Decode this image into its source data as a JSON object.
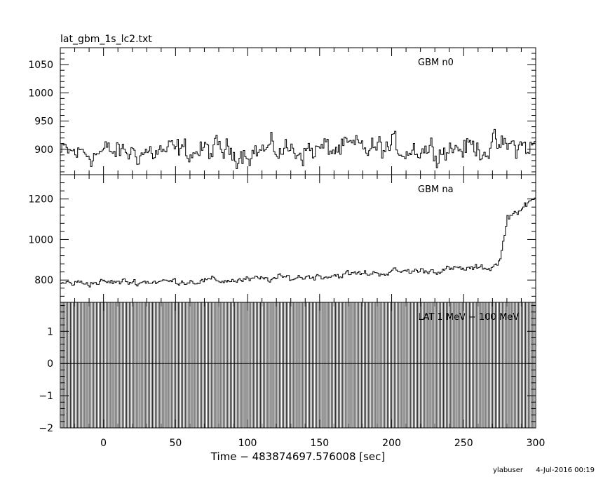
{
  "page": {
    "title": "lat_gbm_1s_lc2.txt",
    "footer_user": "ylabuser",
    "footer_date": "4-Jul-2016 00:19"
  },
  "chart_data": {
    "type": "line",
    "title": "lat_gbm_1s_lc2.txt",
    "xlabel": "Time − 483874697.576008 [sec]",
    "xlim": [
      -30,
      300
    ],
    "xticks": [
      0,
      50,
      100,
      150,
      200,
      250,
      300
    ],
    "line_color": "#000000",
    "panels": [
      {
        "label": "GBM n0",
        "ylim": [
          855,
          1080
        ],
        "yticks": [
          900,
          950,
          1000,
          1050
        ],
        "series": {
          "kind": "noisy",
          "base_start": 893,
          "base_end": 905,
          "jitter": 40,
          "clip": true,
          "x_step": 1
        }
      },
      {
        "label": "GBM na",
        "ylim": [
          690,
          1320
        ],
        "yticks": [
          800,
          1000,
          1200
        ],
        "series": {
          "kind": "rising",
          "segments": [
            {
              "x": -30,
              "y": 785
            },
            {
              "x": 100,
              "y": 800
            },
            {
              "x": 200,
              "y": 840
            },
            {
              "x": 268,
              "y": 860
            },
            {
              "x": 275,
              "y": 900
            },
            {
              "x": 280,
              "y": 1110
            },
            {
              "x": 300,
              "y": 1200
            }
          ],
          "jitter": 32,
          "x_step": 1
        }
      },
      {
        "label": "LAT 1 MeV − 100 MeV",
        "ylim": [
          -2,
          1.9
        ],
        "yticks": [
          -2,
          -1,
          0,
          1
        ],
        "series": {
          "kind": "zero_with_spikes",
          "value": 0,
          "spike_every": 1,
          "spike_ylim": [
            -2,
            1.9
          ]
        }
      }
    ]
  }
}
